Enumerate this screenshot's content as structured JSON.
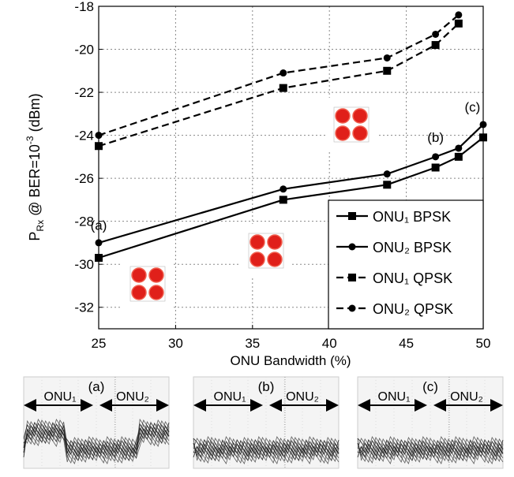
{
  "chart_data": {
    "type": "line",
    "ylabel_parts": [
      "P",
      "Rx",
      " @ BER=10",
      "-3",
      " (dBm)"
    ],
    "xlabel": "ONU Bandwidth (%)",
    "xlim": [
      25,
      50
    ],
    "xticks": [
      25,
      30,
      35,
      40,
      45,
      50
    ],
    "ylim": [
      -33,
      -18
    ],
    "yticks": [
      -32,
      -30,
      -28,
      -26,
      -24,
      -22,
      -20,
      -18
    ],
    "grid": true,
    "legend": "lower right",
    "x": [
      25,
      37,
      43.75,
      46.9,
      48.4,
      50
    ],
    "series": [
      {
        "name": "ONU₁ BPSK",
        "color": "#000000",
        "marker": "square",
        "dashed": false,
        "values": [
          -29.7,
          -27.0,
          -26.3,
          -25.5,
          -25.0,
          -24.1
        ]
      },
      {
        "name": "ONU₂ BPSK",
        "color": "#000000",
        "marker": "circle",
        "dashed": false,
        "values": [
          -29.0,
          -26.5,
          -25.8,
          -25.0,
          -24.6,
          -23.5
        ]
      },
      {
        "name": "ONU₁ QPSK",
        "color": "#000000",
        "marker": "square",
        "dashed": true,
        "values": [
          -24.5,
          -21.8,
          -21.0,
          -19.8,
          -18.8,
          null
        ]
      },
      {
        "name": "ONU₂ QPSK",
        "color": "#000000",
        "marker": "circle",
        "dashed": true,
        "values": [
          -24.0,
          -21.1,
          -20.4,
          -19.3,
          -18.4,
          null
        ]
      }
    ],
    "annotations": [
      {
        "text": "(a)",
        "x": 25,
        "y": -28.4
      },
      {
        "text": "(b)",
        "x": 46.9,
        "y": -24.3
      },
      {
        "text": "(c)",
        "x": 49.3,
        "y": -22.9
      }
    ]
  },
  "panels": [
    {
      "label": "(a)",
      "left": "ONU₁",
      "right": "ONU₂"
    },
    {
      "label": "(b)",
      "left": "ONU₁",
      "right": "ONU₂"
    },
    {
      "label": "(c)",
      "left": "ONU₁",
      "right": "ONU₂"
    }
  ]
}
